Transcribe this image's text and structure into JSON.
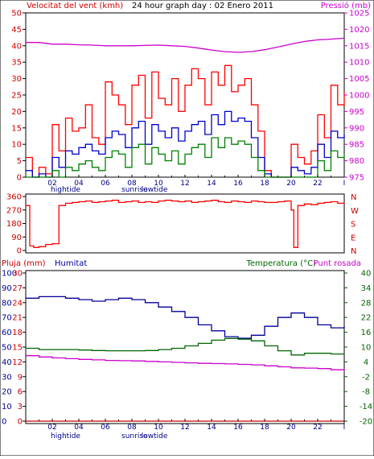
{
  "colors": {
    "wind": "#ff0000",
    "wind_avg": "#0000cc",
    "wind_low": "#008000",
    "pressure": "#cc00cc",
    "rain": "#cc0000",
    "humidity": "#000099",
    "temperature": "#006600",
    "dewpoint": "#cc00cc",
    "axis": "#000000"
  },
  "header": {
    "wind_label": "Velocitat del vent (kmh)",
    "title": "24 hour graph day : 02 Enero 2011",
    "pressure_label": "Pressió (mb)"
  },
  "bottom_header": {
    "rain_label": "Pluja (mm)",
    "humidity_label": "Humitat",
    "temperature_label": "Temperatura (°C)",
    "dew_label": "Punt rosada"
  },
  "x_axis": {
    "ticks_top": [
      "02",
      "04",
      "06",
      "08",
      "10",
      "12",
      "14",
      "16",
      "18",
      "20",
      "22",
      "I"
    ],
    "ticks_bottom": [
      "02",
      "04",
      "06",
      "08",
      "10",
      "12",
      "14",
      "16",
      "18",
      "20",
      "22",
      "I"
    ],
    "events": [
      {
        "label": "hightide",
        "hour": 3.0
      },
      {
        "label": "sunrise",
        "hour": 8.2
      },
      {
        "label": "lowtide",
        "hour": 9.7
      }
    ]
  },
  "chart_data": [
    {
      "type": "line",
      "name": "wind-pressure",
      "x_range": [
        0,
        24
      ],
      "wind_axis": {
        "label": "Velocitat del vent (kmh)",
        "ylim": [
          0,
          50
        ],
        "ticks": [
          0,
          5,
          10,
          15,
          20,
          25,
          30,
          35,
          40,
          45,
          50
        ]
      },
      "pressure_axis": {
        "label": "Pressió (mb)",
        "ylim": [
          975,
          1025
        ],
        "ticks": [
          975,
          980,
          985,
          990,
          995,
          1000,
          1005,
          1010,
          1015,
          1020,
          1025
        ]
      },
      "series": [
        {
          "name": "gust",
          "axis": "wind",
          "x": [
            0,
            0.5,
            1,
            1.5,
            2,
            2.5,
            3,
            3.5,
            4,
            4.5,
            5,
            5.5,
            6,
            6.5,
            7,
            7.5,
            8,
            8.5,
            9,
            9.5,
            10,
            10.5,
            11,
            11.5,
            12,
            12.5,
            13,
            13.5,
            14,
            14.5,
            15,
            15.5,
            16,
            16.5,
            17,
            17.5,
            18,
            18.5,
            19,
            19.5,
            20,
            20.5,
            21,
            21.5,
            22,
            22.5,
            23,
            23.5,
            24
          ],
          "values": [
            6,
            0,
            3,
            1,
            16,
            8,
            18,
            14,
            15,
            22,
            12,
            10,
            29,
            25,
            22,
            16,
            28,
            31,
            18,
            32,
            24,
            22,
            30,
            20,
            28,
            33,
            30,
            22,
            32,
            28,
            34,
            26,
            28,
            30,
            22,
            14,
            2,
            0,
            0,
            0,
            10,
            6,
            4,
            8,
            19,
            12,
            28,
            22,
            26
          ]
        },
        {
          "name": "average",
          "axis": "wind",
          "x": [
            0,
            0.5,
            1,
            1.5,
            2,
            2.5,
            3,
            3.5,
            4,
            4.5,
            5,
            5.5,
            6,
            6.5,
            7,
            7.5,
            8,
            8.5,
            9,
            9.5,
            10,
            10.5,
            11,
            11.5,
            12,
            12.5,
            13,
            13.5,
            14,
            14.5,
            15,
            15.5,
            16,
            16.5,
            17,
            17.5,
            18,
            18.5,
            19,
            19.5,
            20,
            20.5,
            21,
            21.5,
            22,
            22.5,
            23,
            23.5,
            24
          ],
          "values": [
            2,
            0,
            1,
            0,
            6,
            3,
            8,
            7,
            9,
            10,
            8,
            7,
            12,
            14,
            13,
            9,
            15,
            17,
            10,
            16,
            14,
            12,
            15,
            11,
            14,
            16,
            17,
            13,
            19,
            16,
            20,
            17,
            18,
            17,
            12,
            6,
            1,
            0,
            0,
            0,
            3,
            2,
            1,
            3,
            10,
            6,
            14,
            12,
            13
          ]
        },
        {
          "name": "low",
          "axis": "wind",
          "x": [
            0,
            0.5,
            1,
            1.5,
            2,
            2.5,
            3,
            3.5,
            4,
            4.5,
            5,
            5.5,
            6,
            6.5,
            7,
            7.5,
            8,
            8.5,
            9,
            9.5,
            10,
            10.5,
            11,
            11.5,
            12,
            12.5,
            13,
            13.5,
            14,
            14.5,
            15,
            15.5,
            16,
            16.5,
            17,
            17.5,
            18,
            18.5,
            19,
            19.5,
            20,
            20.5,
            21,
            21.5,
            22,
            22.5,
            23,
            23.5,
            24
          ],
          "values": [
            0,
            0,
            0,
            0,
            2,
            0,
            3,
            2,
            4,
            5,
            3,
            2,
            6,
            8,
            7,
            3,
            9,
            10,
            4,
            9,
            7,
            5,
            8,
            4,
            7,
            9,
            10,
            6,
            12,
            9,
            12,
            10,
            11,
            10,
            6,
            2,
            0,
            0,
            0,
            0,
            0,
            0,
            0,
            0,
            5,
            2,
            8,
            6,
            7
          ]
        },
        {
          "name": "pressure",
          "axis": "pressure",
          "x": [
            0,
            1,
            2,
            3,
            4,
            5,
            6,
            7,
            8,
            9,
            10,
            11,
            12,
            13,
            14,
            15,
            16,
            17,
            18,
            19,
            20,
            21,
            22,
            23,
            24
          ],
          "values": [
            1016,
            1016,
            1015.5,
            1015.5,
            1015.3,
            1015.2,
            1015,
            1015,
            1015,
            1015.1,
            1015.2,
            1015,
            1014.8,
            1014.3,
            1013.7,
            1013.2,
            1013,
            1013.2,
            1013.8,
            1014.6,
            1015.5,
            1016.3,
            1016.8,
            1017,
            1017.3
          ]
        }
      ]
    },
    {
      "type": "line",
      "name": "wind-direction",
      "x_range": [
        0,
        24
      ],
      "ylim": [
        0,
        360
      ],
      "ticks": [
        0,
        90,
        180,
        270,
        360
      ],
      "compass": [
        "N",
        "W",
        "S",
        "E",
        "N"
      ],
      "series": [
        {
          "name": "direction",
          "x": [
            0,
            0.3,
            0.6,
            1,
            1.5,
            2,
            2.5,
            3,
            3.5,
            4,
            4.5,
            5,
            5.5,
            6,
            6.5,
            7,
            7.5,
            8,
            8.5,
            9,
            9.5,
            10,
            10.5,
            11,
            11.5,
            12,
            12.5,
            13,
            13.5,
            14,
            14.5,
            15,
            15.5,
            16,
            16.5,
            17,
            17.5,
            18,
            18.5,
            19,
            19.5,
            20,
            20.2,
            20.5,
            21,
            21.5,
            22,
            22.5,
            23,
            23.5,
            24
          ],
          "values": [
            300,
            30,
            20,
            25,
            40,
            45,
            300,
            315,
            320,
            325,
            330,
            320,
            325,
            330,
            335,
            320,
            325,
            330,
            320,
            325,
            320,
            330,
            335,
            330,
            325,
            330,
            320,
            325,
            330,
            335,
            325,
            320,
            330,
            325,
            320,
            330,
            325,
            320,
            320,
            325,
            330,
            270,
            20,
            300,
            310,
            305,
            315,
            320,
            325,
            315,
            310
          ]
        }
      ]
    },
    {
      "type": "line",
      "name": "rain-humidity-temperature",
      "x_range": [
        0,
        24
      ],
      "rain_axis": {
        "label": "Pluja (mm)",
        "ylim": [
          0,
          30
        ],
        "ticks": [
          0,
          3,
          6,
          9,
          12,
          15,
          18,
          21,
          24,
          27,
          30
        ]
      },
      "humidity_axis": {
        "label": "Humitat",
        "ylim": [
          0,
          100
        ],
        "ticks": [
          0,
          10,
          20,
          30,
          40,
          50,
          60,
          70,
          80,
          90,
          100
        ]
      },
      "temperature_axis": {
        "label": "Temperatura (°C)",
        "ylim": [
          -20,
          40
        ],
        "ticks": [
          -20,
          -14,
          -8,
          -2,
          4,
          10,
          16,
          22,
          28,
          34,
          40
        ]
      },
      "series": [
        {
          "name": "rain",
          "axis": "rain",
          "x": [
            0,
            24
          ],
          "values": [
            0,
            0
          ]
        },
        {
          "name": "humidity",
          "axis": "humidity",
          "x": [
            0,
            1,
            2,
            3,
            4,
            5,
            6,
            7,
            8,
            9,
            10,
            11,
            12,
            13,
            14,
            15,
            16,
            17,
            18,
            19,
            20,
            21,
            22,
            23,
            24
          ],
          "values": [
            83,
            84,
            84,
            83,
            82,
            81,
            82,
            83,
            82,
            80,
            77,
            74,
            70,
            65,
            61,
            57,
            56,
            58,
            64,
            70,
            73,
            70,
            65,
            63,
            64
          ]
        },
        {
          "name": "temperature",
          "axis": "temperature",
          "x": [
            0,
            1,
            2,
            3,
            4,
            5,
            6,
            7,
            8,
            9,
            10,
            11,
            12,
            13,
            14,
            15,
            16,
            17,
            18,
            19,
            20,
            21,
            22,
            23,
            24
          ],
          "values": [
            9.5,
            9,
            9,
            9,
            8.8,
            8.6,
            8.5,
            8.5,
            8.5,
            8.6,
            9,
            9.5,
            10.5,
            11.5,
            12.8,
            13.5,
            13.2,
            12.5,
            10.5,
            8.5,
            6.8,
            7.5,
            7.5,
            7.2,
            7
          ]
        },
        {
          "name": "dewpoint",
          "axis": "temperature",
          "x": [
            0,
            1,
            2,
            3,
            4,
            5,
            6,
            7,
            8,
            9,
            10,
            11,
            12,
            13,
            14,
            15,
            16,
            17,
            18,
            19,
            20,
            21,
            22,
            23,
            24
          ],
          "values": [
            6.5,
            6,
            5.6,
            5.3,
            5,
            4.8,
            4.6,
            4.5,
            4.4,
            4.2,
            4,
            3.8,
            3.6,
            3.4,
            3.3,
            3.2,
            3,
            2.8,
            2.4,
            2,
            1.6,
            1.5,
            1.3,
            0.8,
            0.3
          ]
        }
      ]
    }
  ]
}
